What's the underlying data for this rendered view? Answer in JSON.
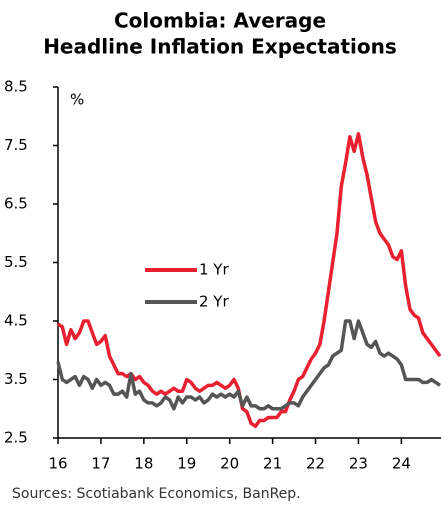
{
  "chart_data": {
    "type": "line",
    "title": [
      "Colombia: Average",
      "Headline Inflation Expectations"
    ],
    "y_label": "%",
    "source": "Sources: Scotiabank Economics, BanRep.",
    "x": [
      16,
      16.1,
      16.2,
      16.3,
      16.4,
      16.5,
      16.6,
      16.7,
      16.8,
      16.9,
      17,
      17.1,
      17.2,
      17.3,
      17.4,
      17.5,
      17.6,
      17.7,
      17.8,
      17.9,
      18,
      18.1,
      18.2,
      18.3,
      18.4,
      18.5,
      18.6,
      18.7,
      18.8,
      18.9,
      19,
      19.1,
      19.2,
      19.3,
      19.4,
      19.5,
      19.6,
      19.7,
      19.8,
      19.9,
      20,
      20.1,
      20.2,
      20.3,
      20.4,
      20.5,
      20.6,
      20.7,
      20.8,
      20.9,
      21,
      21.1,
      21.2,
      21.3,
      21.4,
      21.5,
      21.6,
      21.7,
      21.8,
      21.9,
      22,
      22.1,
      22.2,
      22.3,
      22.4,
      22.5,
      22.6,
      22.7,
      22.8,
      22.9,
      23,
      23.1,
      23.2,
      23.3,
      23.4,
      23.5,
      23.6,
      23.7,
      23.8,
      23.9,
      24,
      24.1,
      24.2,
      24.3,
      24.4,
      24.5,
      24.6,
      24.7,
      24.8,
      24.9
    ],
    "series": [
      {
        "name": "1 Yr",
        "color": "#e8202f",
        "values": [
          4.45,
          4.4,
          4.1,
          4.35,
          4.2,
          4.3,
          4.5,
          4.5,
          4.3,
          4.1,
          4.15,
          4.25,
          3.9,
          3.75,
          3.6,
          3.6,
          3.55,
          3.6,
          3.5,
          3.55,
          3.45,
          3.4,
          3.3,
          3.25,
          3.3,
          3.25,
          3.3,
          3.35,
          3.3,
          3.3,
          3.5,
          3.45,
          3.35,
          3.3,
          3.35,
          3.4,
          3.4,
          3.45,
          3.4,
          3.35,
          3.4,
          3.5,
          3.35,
          3.0,
          2.95,
          2.75,
          2.7,
          2.8,
          2.8,
          2.85,
          2.85,
          2.85,
          2.95,
          2.95,
          3.15,
          3.3,
          3.5,
          3.55,
          3.7,
          3.85,
          3.95,
          4.1,
          4.5,
          5.0,
          5.5,
          6.0,
          6.8,
          7.2,
          7.65,
          7.4,
          7.7,
          7.3,
          7.0,
          6.6,
          6.2,
          6.0,
          5.9,
          5.8,
          5.6,
          5.55,
          5.7,
          5.1,
          4.7,
          4.6,
          4.55,
          4.3,
          4.2,
          4.1,
          4.0,
          3.9
        ]
      },
      {
        "name": "2 Yr",
        "color": "#555555",
        "values": [
          3.8,
          3.5,
          3.45,
          3.5,
          3.55,
          3.4,
          3.55,
          3.5,
          3.35,
          3.5,
          3.4,
          3.45,
          3.4,
          3.25,
          3.25,
          3.3,
          3.2,
          3.6,
          3.25,
          3.3,
          3.15,
          3.1,
          3.1,
          3.05,
          3.1,
          3.2,
          3.15,
          3.0,
          3.2,
          3.1,
          3.2,
          3.2,
          3.15,
          3.2,
          3.1,
          3.15,
          3.25,
          3.2,
          3.25,
          3.2,
          3.25,
          3.2,
          3.3,
          3.05,
          3.2,
          3.05,
          3.05,
          3.0,
          3.0,
          3.05,
          3.0,
          3.0,
          3.0,
          3.05,
          3.1,
          3.1,
          3.05,
          3.2,
          3.3,
          3.4,
          3.5,
          3.6,
          3.7,
          3.75,
          3.9,
          3.95,
          4.0,
          4.5,
          4.5,
          4.2,
          4.5,
          4.3,
          4.1,
          4.05,
          4.15,
          3.95,
          3.9,
          3.95,
          3.9,
          3.85,
          3.75,
          3.5,
          3.5,
          3.5,
          3.5,
          3.45,
          3.45,
          3.5,
          3.45,
          3.4
        ]
      }
    ],
    "xlim": [
      16,
      24.9
    ],
    "xticks": [
      16,
      17,
      18,
      19,
      20,
      21,
      22,
      23,
      24
    ],
    "ylim": [
      2.5,
      8.5
    ],
    "yticks": [
      2.5,
      3.5,
      4.5,
      5.5,
      6.5,
      7.5,
      8.5
    ]
  }
}
